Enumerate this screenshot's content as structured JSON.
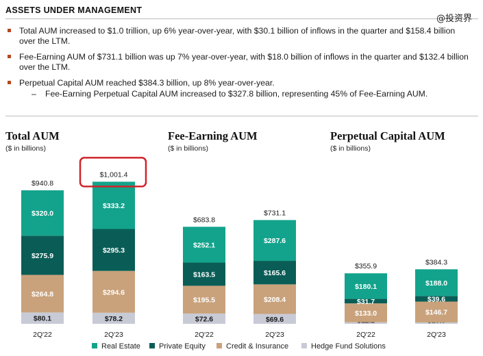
{
  "header": {
    "title": "ASSETS UNDER MANAGEMENT"
  },
  "watermark": "@投资界",
  "bullets": [
    {
      "text": "Total AUM increased to $1.0 trillion, up 6% year-over-year, with $30.1 billion of inflows in the quarter and $158.4 billion over the LTM."
    },
    {
      "text": "Fee-Earning AUM of $731.1 billion was up 7% year-over-year, with $18.0 billion of inflows in the quarter and $132.4 billion over the LTM."
    },
    {
      "text": "Perpetual Capital AUM reached $384.3 billion, up 8% year-over-year.",
      "sub": "Fee-Earning Perpetual Capital AUM increased to $327.8 billion, representing 45% of Fee-Earning AUM."
    }
  ],
  "colors": {
    "Real Estate": "#13a38c",
    "Private Equity": "#0a5d56",
    "Credit & Insurance": "#c9a27b",
    "Hedge Fund Solutions": "#c8cbd6",
    "highlight": "#d0232a"
  },
  "legend": [
    "Real Estate",
    "Private Equity",
    "Credit & Insurance",
    "Hedge Fund Solutions"
  ],
  "chart_data": [
    {
      "type": "bar",
      "stacked": true,
      "title": "Total AUM",
      "unit": "($ in billions)",
      "categories": [
        "2Q'22",
        "2Q'23"
      ],
      "totals": [
        "$940.8",
        "$1,001.4"
      ],
      "highlight_total": "2Q'23",
      "series": [
        {
          "name": "Hedge Fund Solutions",
          "values": [
            80.1,
            78.2
          ],
          "labels": [
            "$80.1",
            "$78.2"
          ]
        },
        {
          "name": "Credit & Insurance",
          "values": [
            264.8,
            294.6
          ],
          "labels": [
            "$264.8",
            "$294.6"
          ]
        },
        {
          "name": "Private Equity",
          "values": [
            275.9,
            295.3
          ],
          "labels": [
            "$275.9",
            "$295.3"
          ]
        },
        {
          "name": "Real Estate",
          "values": [
            320.0,
            333.2
          ],
          "labels": [
            "$320.0",
            "$333.2"
          ]
        }
      ]
    },
    {
      "type": "bar",
      "stacked": true,
      "title": "Fee-Earning AUM",
      "unit": "($ in billions)",
      "categories": [
        "2Q'22",
        "2Q'23"
      ],
      "totals": [
        "$683.8",
        "$731.1"
      ],
      "series": [
        {
          "name": "Hedge Fund Solutions",
          "values": [
            72.6,
            69.6
          ],
          "labels": [
            "$72.6",
            "$69.6"
          ]
        },
        {
          "name": "Credit & Insurance",
          "values": [
            195.5,
            208.4
          ],
          "labels": [
            "$195.5",
            "$208.4"
          ]
        },
        {
          "name": "Private Equity",
          "values": [
            163.5,
            165.6
          ],
          "labels": [
            "$163.5",
            "$165.6"
          ]
        },
        {
          "name": "Real Estate",
          "values": [
            252.1,
            287.6
          ],
          "labels": [
            "$252.1",
            "$287.6"
          ]
        }
      ]
    },
    {
      "type": "bar",
      "stacked": true,
      "title": "Perpetual Capital AUM",
      "unit": "($ in billions)",
      "categories": [
        "2Q'22",
        "2Q'23"
      ],
      "totals": [
        "$355.9",
        "$384.3"
      ],
      "series": [
        {
          "name": "Hedge Fund Solutions",
          "values": [
            11.1,
            10.0
          ],
          "labels": [
            "$11.1",
            "$10.0"
          ]
        },
        {
          "name": "Credit & Insurance",
          "values": [
            133.0,
            146.7
          ],
          "labels": [
            "$133.0",
            "$146.7"
          ]
        },
        {
          "name": "Private Equity",
          "values": [
            31.7,
            39.6
          ],
          "labels": [
            "$31.7",
            "$39.6"
          ]
        },
        {
          "name": "Real Estate",
          "values": [
            180.1,
            188.0
          ],
          "labels": [
            "$180.1",
            "$188.0"
          ]
        }
      ]
    }
  ]
}
